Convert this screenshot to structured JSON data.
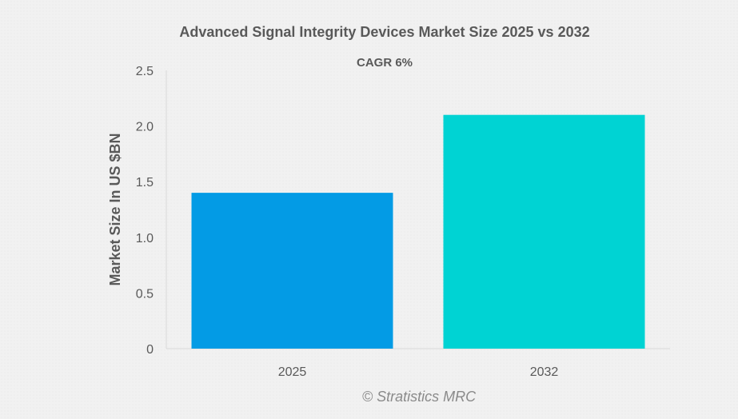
{
  "chart_data": {
    "type": "bar",
    "title": "Advanced Signal Integrity Devices Market Size 2025 vs 2032",
    "subtitle": "CAGR 6%",
    "xlabel": "",
    "ylabel": "Market Size In US $BN",
    "categories": [
      "2025",
      "2032"
    ],
    "values": [
      1.4,
      2.1
    ],
    "bar_colors": [
      "#039be5",
      "#00d3d3"
    ],
    "ylim": [
      0,
      2.5
    ],
    "yticks": [
      0,
      0.5,
      1.0,
      1.5,
      2.0,
      2.5
    ],
    "ytick_labels": [
      "0",
      "0.5",
      "1.0",
      "1.5",
      "2.0",
      "2.5"
    ],
    "grid": false,
    "legend": "none"
  },
  "credit": "© Stratistics MRC",
  "colors": {
    "text": "#595959",
    "axis": "#d9d9d9",
    "credit": "#8a8a8a"
  }
}
